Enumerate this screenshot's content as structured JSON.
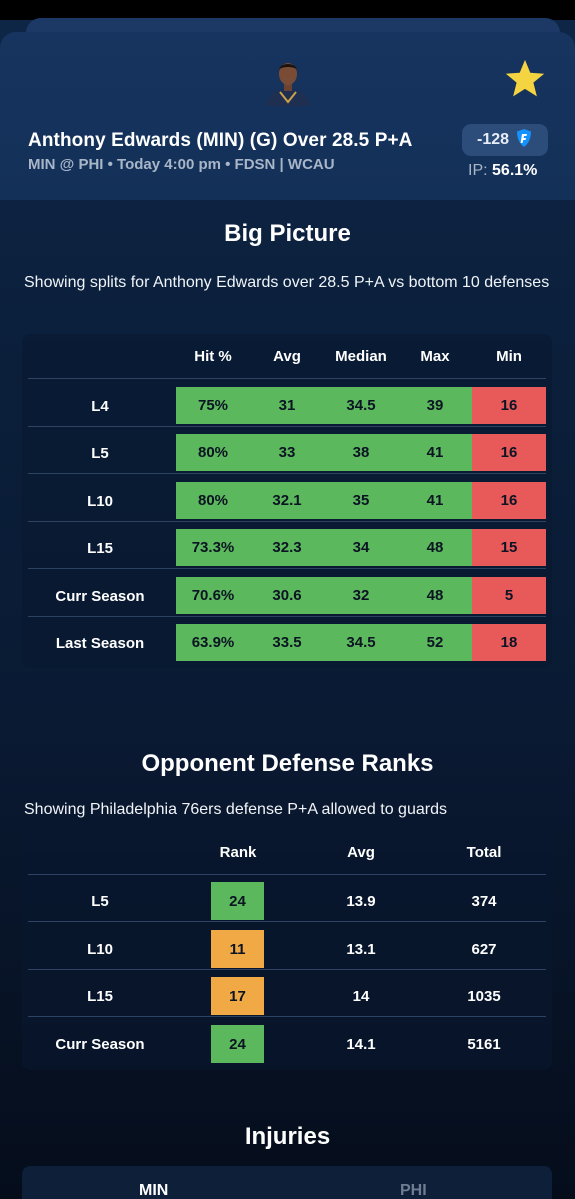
{
  "header": {
    "title": "Anthony Edwards (MIN) (G) Over 28.5 P+A",
    "subtitle": "MIN @ PHI • Today 4:00 pm • FDSN | WCAU",
    "odds": "-128",
    "ip_label": "IP:",
    "ip_value": "56.1%",
    "favorite_icon": "star-icon",
    "book_icon": "fanduel-shield-icon",
    "star_color": "#f5d442"
  },
  "big_picture": {
    "title": "Big Picture",
    "description": "Showing splits for Anthony Edwards over 28.5 P+A vs bottom 10 defenses",
    "columns": [
      "Hit %",
      "Avg",
      "Median",
      "Max",
      "Min"
    ],
    "rows": [
      {
        "label": "L4",
        "values": [
          "75%",
          "31",
          "34.5",
          "39",
          "16"
        ]
      },
      {
        "label": "L5",
        "values": [
          "80%",
          "33",
          "38",
          "41",
          "16"
        ]
      },
      {
        "label": "L10",
        "values": [
          "80%",
          "32.1",
          "35",
          "41",
          "16"
        ]
      },
      {
        "label": "L15",
        "values": [
          "73.3%",
          "32.3",
          "34",
          "48",
          "15"
        ]
      },
      {
        "label": "Curr Season",
        "values": [
          "70.6%",
          "30.6",
          "32",
          "48",
          "5"
        ]
      },
      {
        "label": "Last Season",
        "values": [
          "63.9%",
          "33.5",
          "34.5",
          "52",
          "18"
        ]
      }
    ]
  },
  "opponent_defense": {
    "title": "Opponent Defense Ranks",
    "description": "Showing Philadelphia 76ers defense P+A allowed to guards",
    "columns": [
      "Rank",
      "Avg",
      "Total"
    ],
    "rows": [
      {
        "label": "L5",
        "rank": "24",
        "avg": "13.9",
        "total": "374",
        "rank_color": "green"
      },
      {
        "label": "L10",
        "rank": "11",
        "avg": "13.1",
        "total": "627",
        "rank_color": "orange"
      },
      {
        "label": "L15",
        "rank": "17",
        "avg": "14",
        "total": "1035",
        "rank_color": "orange"
      },
      {
        "label": "Curr Season",
        "rank": "24",
        "avg": "14.1",
        "total": "5161",
        "rank_color": "green"
      }
    ]
  },
  "injuries": {
    "title": "Injuries",
    "tabs": [
      "MIN",
      "PHI"
    ]
  },
  "colors": {
    "green": "#5cb85c",
    "red": "#e8595a",
    "orange": "#f0a945"
  }
}
